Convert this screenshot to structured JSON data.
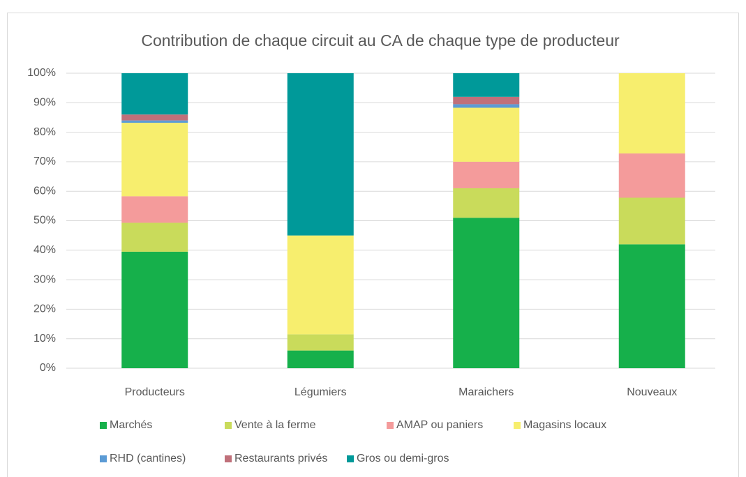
{
  "chart_data": {
    "type": "stacked_bar",
    "title": "Contribution de chaque circuit au CA de chaque type de producteur",
    "categories": [
      "Producteurs",
      "Légumiers",
      "Maraichers",
      "Nouveaux"
    ],
    "series": [
      {
        "name": "Marchés",
        "color": "#16b04b",
        "values": [
          39.5,
          6,
          51,
          42
        ]
      },
      {
        "name": "Vente à la ferme",
        "color": "#c9db5b",
        "values": [
          9.8,
          5.5,
          10,
          15.8
        ]
      },
      {
        "name": "AMAP ou paniers",
        "color": "#f49b9b",
        "values": [
          9,
          0,
          9,
          15
        ]
      },
      {
        "name": "Magasins locaux",
        "color": "#f7ee6e",
        "values": [
          24.9,
          33.5,
          18.3,
          27.2
        ]
      },
      {
        "name": "RHD (cantines)",
        "color": "#5b9bd5",
        "values": [
          0.8,
          0,
          1.2,
          0
        ]
      },
      {
        "name": "Restaurants privés",
        "color": "#c0707a",
        "values": [
          2,
          0,
          2.5,
          0
        ]
      },
      {
        "name": "Gros ou demi-gros",
        "color": "#009999",
        "values": [
          14,
          55,
          8,
          0
        ]
      }
    ],
    "ylim": [
      0,
      100
    ],
    "yticks": [
      {
        "value": 0,
        "label": "0%"
      },
      {
        "value": 10,
        "label": "10%"
      },
      {
        "value": 20,
        "label": "20%"
      },
      {
        "value": 30,
        "label": "30%"
      },
      {
        "value": 40,
        "label": "40%"
      },
      {
        "value": 50,
        "label": "50%"
      },
      {
        "value": 60,
        "label": "60%"
      },
      {
        "value": 70,
        "label": "70%"
      },
      {
        "value": 80,
        "label": "80%"
      },
      {
        "value": 90,
        "label": "90%"
      },
      {
        "value": 100,
        "label": "100%"
      }
    ],
    "grid": true,
    "legend": "bottom"
  }
}
